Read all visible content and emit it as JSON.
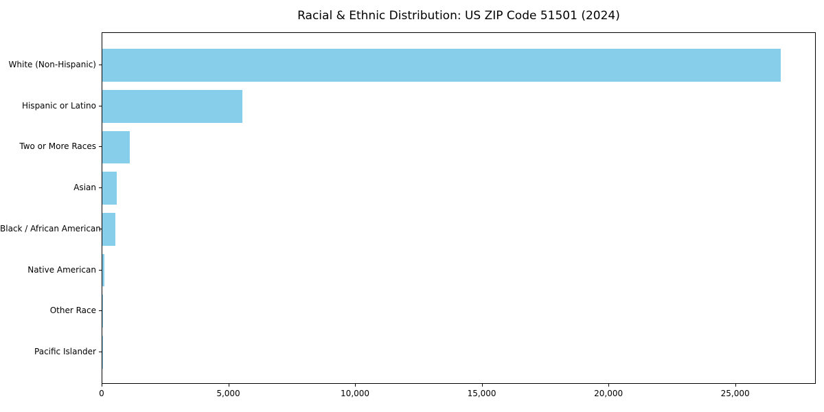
{
  "title": "Racial & Ethnic Distribution: US ZIP Code 51501 (2024)",
  "chart_data": {
    "type": "bar",
    "orientation": "horizontal",
    "title": "Racial & Ethnic Distribution: US ZIP Code 51501 (2024)",
    "xlabel": "",
    "ylabel": "",
    "categories": [
      "White (Non-Hispanic)",
      "Hispanic or Latino",
      "Two or More Races",
      "Asian",
      "Black / African American",
      "Native American",
      "Other Race",
      "Pacific Islander"
    ],
    "values": [
      26780,
      5540,
      1080,
      570,
      525,
      90,
      30,
      10
    ],
    "xlim": [
      0,
      28180
    ],
    "x_ticks": [
      0,
      5000,
      10000,
      15000,
      20000,
      25000
    ],
    "x_tick_labels": [
      "0",
      "5,000",
      "10,000",
      "15,000",
      "20,000",
      "25,000"
    ],
    "bar_color": "#87CEEB",
    "grid": false,
    "legend": null
  }
}
